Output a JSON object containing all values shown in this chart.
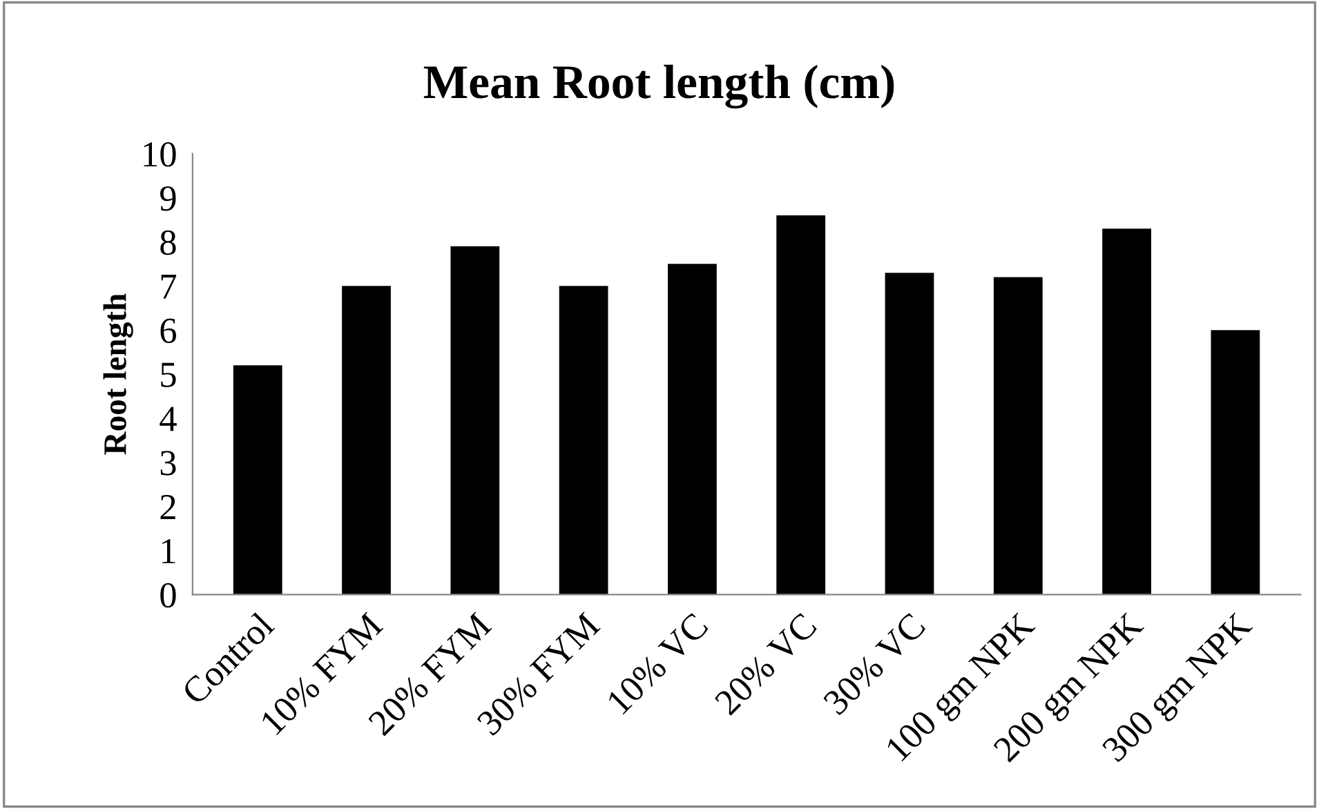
{
  "chart_data": {
    "type": "bar",
    "title": "Mean Root length (cm)",
    "ylabel": "Root length",
    "categories": [
      "Control",
      "10% FYM",
      "20% FYM",
      "30% FYM",
      "10% VC",
      "20% VC",
      "30% VC",
      "100 gm NPK",
      "200 gm NPK",
      "300 gm NPK"
    ],
    "values": [
      5.2,
      7.0,
      7.9,
      7.0,
      7.5,
      8.6,
      7.3,
      7.2,
      8.3,
      6.0
    ],
    "color": "#000000",
    "ylim": [
      0,
      10
    ],
    "yticks": [
      0,
      1,
      2,
      3,
      4,
      5,
      6,
      7,
      8,
      9,
      10
    ],
    "grid": false,
    "legend": false
  }
}
